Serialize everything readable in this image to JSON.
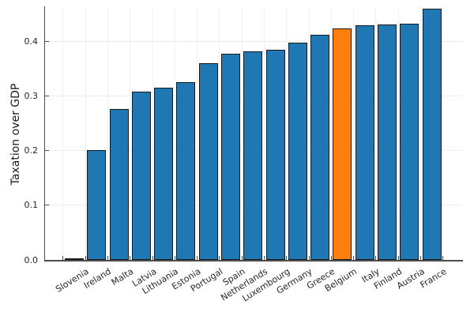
{
  "chart_data": {
    "type": "bar",
    "title": "",
    "xlabel": "",
    "ylabel": "Taxation over GDP",
    "categories": [
      "Slovenia",
      "Ireland",
      "Malta",
      "Latvia",
      "Lithuania",
      "Estonia",
      "Portugal",
      "Spain",
      "Netherlands",
      "Luxembourg",
      "Germany",
      "Greece",
      "Belgium",
      "Italy",
      "Finland",
      "Austria",
      "France"
    ],
    "values": [
      0.001,
      0.202,
      0.277,
      0.308,
      0.316,
      0.326,
      0.361,
      0.378,
      0.383,
      0.385,
      0.399,
      0.413,
      0.425,
      0.43,
      0.432,
      0.433,
      0.461
    ],
    "highlight_category": "Belgium",
    "colors": {
      "bar_fill": "#1f77b4",
      "highlight_fill": "#ff7f0e",
      "bar_edge": "#16191d",
      "axis": "#4d4d4d",
      "grid": "#ececec",
      "text": "#262626"
    },
    "ylim": [
      0,
      0.465
    ],
    "yticks": [
      0.0,
      0.1,
      0.2,
      0.3,
      0.4
    ],
    "ytick_labels": [
      "0.0",
      "0.1",
      "0.2",
      "0.3",
      "0.4"
    ],
    "grid": true,
    "legend_position": "none",
    "x_label_rotation_deg": -32
  }
}
